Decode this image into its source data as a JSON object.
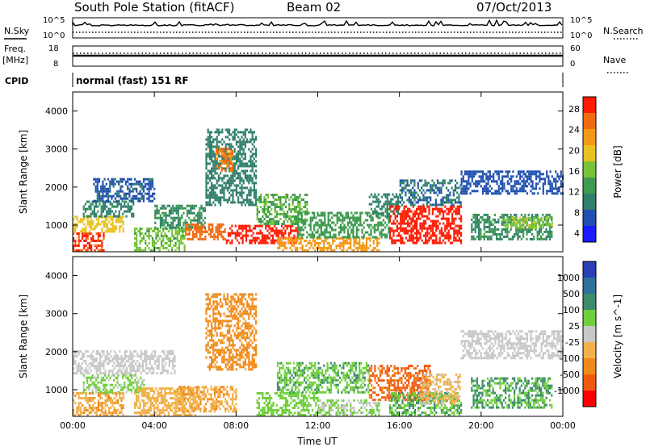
{
  "header": {
    "station": "South Pole Station (fitACF)",
    "beam": "Beam 02",
    "date": "07/Oct/2013"
  },
  "strip_labels": {
    "nsky": "N.Sky",
    "nsearch": "N.Search",
    "freq": "Freq.",
    "freq_unit": "[MHz]",
    "nave": "Nave",
    "cpid": "CPID",
    "cpid_value": "normal (fast) 151 RF",
    "noise_ticks_left": [
      "10^5",
      "10^0"
    ],
    "noise_ticks_right": [
      "10^5",
      "10^0"
    ],
    "freq_ticks_left": [
      "18",
      "8"
    ],
    "nave_ticks_right": [
      "60",
      "0"
    ]
  },
  "colors": {
    "power_scale": [
      "#1a1aff",
      "#1f4fb0",
      "#2f7f6a",
      "#3e9a4e",
      "#77c43a",
      "#e8c220",
      "#f59a18",
      "#f26a10",
      "#ff1a00"
    ],
    "velocity_scale": [
      "#2a3fb8",
      "#2f6f9a",
      "#3b8c6a",
      "#6fcf3a",
      "#c8c8c8",
      "#f2b14a",
      "#f08a1a",
      "#f05a10",
      "#ff0000"
    ]
  },
  "chart_data": [
    {
      "type": "heatmap",
      "title": "",
      "xlabel": "",
      "ylabel": "Slant Range [km]",
      "x_ticks": [
        "00:00",
        "04:00",
        "08:00",
        "12:00",
        "16:00",
        "20:00",
        "00:00"
      ],
      "y_ticks": [
        "1000",
        "2000",
        "3000",
        "4000"
      ],
      "ylim": [
        300,
        4500
      ],
      "xlim_hours": [
        0,
        24
      ],
      "colorbar": {
        "label": "Power [dB]",
        "ticks": [
          "28",
          "24",
          "20",
          "16",
          "12",
          "8",
          "4"
        ],
        "range": [
          0,
          30
        ]
      },
      "series": [
        {
          "values": [
            {
              "t": [
                0.0,
                1.5
              ],
              "r": [
                300,
                800
              ],
              "v": 27
            },
            {
              "t": [
                0.0,
                2.5
              ],
              "r": [
                800,
                1200
              ],
              "v": 18
            },
            {
              "t": [
                0.5,
                3.0
              ],
              "r": [
                1200,
                1600
              ],
              "v": 9
            },
            {
              "t": [
                1.0,
                4.0
              ],
              "r": [
                1600,
                2200
              ],
              "v": 6
            },
            {
              "t": [
                3.0,
                5.5
              ],
              "r": [
                300,
                900
              ],
              "v": 14
            },
            {
              "t": [
                4.0,
                6.5
              ],
              "r": [
                900,
                1500
              ],
              "v": 10
            },
            {
              "t": [
                5.5,
                7.5
              ],
              "r": [
                600,
                1000
              ],
              "v": 25
            },
            {
              "t": [
                6.5,
                9.0
              ],
              "r": [
                1500,
                3500
              ],
              "v": 8
            },
            {
              "t": [
                7.0,
                7.8
              ],
              "r": [
                2400,
                3000
              ],
              "v": 24
            },
            {
              "t": [
                7.5,
                11.0
              ],
              "r": [
                500,
                1000
              ],
              "v": 28
            },
            {
              "t": [
                9.0,
                11.5
              ],
              "r": [
                1000,
                1800
              ],
              "v": 13
            },
            {
              "t": [
                10.0,
                15.0
              ],
              "r": [
                300,
                650
              ],
              "v": 22
            },
            {
              "t": [
                11.0,
                15.5
              ],
              "r": [
                650,
                1300
              ],
              "v": 12
            },
            {
              "t": [
                14.5,
                16.0
              ],
              "r": [
                1200,
                1800
              ],
              "v": 9
            },
            {
              "t": [
                15.5,
                19.0
              ],
              "r": [
                500,
                1500
              ],
              "v": 29
            },
            {
              "t": [
                16.0,
                19.0
              ],
              "r": [
                1500,
                2200
              ],
              "v": 7
            },
            {
              "t": [
                19.0,
                24.0
              ],
              "r": [
                1800,
                2400
              ],
              "v": 5
            },
            {
              "t": [
                19.5,
                23.5
              ],
              "r": [
                600,
                1300
              ],
              "v": 10
            },
            {
              "t": [
                21.0,
                23.5
              ],
              "r": [
                900,
                1200
              ],
              "v": 16
            }
          ]
        }
      ]
    },
    {
      "type": "heatmap",
      "title": "",
      "xlabel": "Time UT",
      "ylabel": "Slant Range [km]",
      "x_ticks": [
        "00:00",
        "04:00",
        "08:00",
        "12:00",
        "16:00",
        "20:00",
        "00:00"
      ],
      "y_ticks": [
        "1000",
        "2000",
        "3000",
        "4000"
      ],
      "ylim": [
        300,
        4500
      ],
      "xlim_hours": [
        0,
        24
      ],
      "colorbar": {
        "label": "Velocity [m s^-1]",
        "ticks": [
          "1000",
          "500",
          "100",
          "25",
          "-25",
          "-100",
          "-500",
          "-1000"
        ],
        "range": [
          -1000,
          1000
        ]
      },
      "series": [
        {
          "values": [
            {
              "t": [
                0.0,
                2.5
              ],
              "r": [
                300,
                900
              ],
              "v": -300
            },
            {
              "t": [
                0.5,
                3.5
              ],
              "r": [
                900,
                1400
              ],
              "v": 150
            },
            {
              "t": [
                0.0,
                5.0
              ],
              "r": [
                1400,
                2000
              ],
              "v": 0
            },
            {
              "t": [
                3.0,
                6.0
              ],
              "r": [
                300,
                1000
              ],
              "v": -250
            },
            {
              "t": [
                5.0,
                8.0
              ],
              "r": [
                400,
                1100
              ],
              "v": -300
            },
            {
              "t": [
                6.5,
                9.0
              ],
              "r": [
                1500,
                3500
              ],
              "v": -400
            },
            {
              "t": [
                9.0,
                12.0
              ],
              "r": [
                300,
                900
              ],
              "v": 200
            },
            {
              "t": [
                10.0,
                14.5
              ],
              "r": [
                900,
                1700
              ],
              "v": 300
            },
            {
              "t": [
                12.0,
                15.0
              ],
              "r": [
                300,
                700
              ],
              "v": 120
            },
            {
              "t": [
                14.5,
                17.5
              ],
              "r": [
                700,
                1600
              ],
              "v": -600
            },
            {
              "t": [
                15.5,
                19.0
              ],
              "r": [
                300,
                900
              ],
              "v": 300
            },
            {
              "t": [
                17.0,
                19.0
              ],
              "r": [
                600,
                1400
              ],
              "v": -150
            },
            {
              "t": [
                19.0,
                24.0
              ],
              "r": [
                1800,
                2500
              ],
              "v": 0
            },
            {
              "t": [
                19.5,
                23.5
              ],
              "r": [
                500,
                1300
              ],
              "v": 350
            }
          ]
        }
      ]
    }
  ]
}
